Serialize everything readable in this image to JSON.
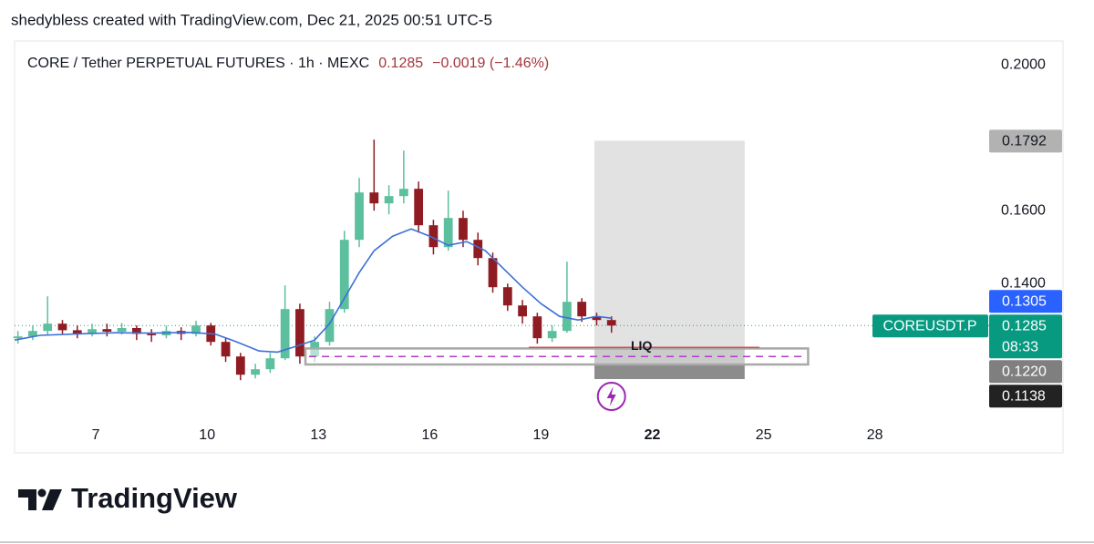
{
  "chart_data": {
    "type": "candlestick",
    "caption": "shedybless created with TradingView.com, Dec 21, 2025 00:51 UTC-5",
    "title": "CORE / Tether PERPETUAL FUTURES · 1h · MEXC",
    "last_price": 0.1285,
    "change": "−0.0019 (−1.46%)",
    "countdown": "08:33",
    "symbol_tag": "COREUSDT.P",
    "brand": "TradingView",
    "up_color": "#5cbf9d",
    "down_color": "#8e1c22",
    "x": [
      4.9,
      5.3,
      5.7,
      6.1,
      6.5,
      6.9,
      7.3,
      7.7,
      8.1,
      8.5,
      8.9,
      9.3,
      9.7,
      10.1,
      10.5,
      10.9,
      11.3,
      11.7,
      12.1,
      12.5,
      12.9,
      13.3,
      13.7,
      14.1,
      14.5,
      14.9,
      15.3,
      15.7,
      16.1,
      16.5,
      16.9,
      17.3,
      17.7,
      18.1,
      18.5,
      18.9,
      19.3,
      19.7,
      20.1,
      20.5,
      20.9
    ],
    "open": [
      0.125,
      0.1255,
      0.127,
      0.129,
      0.1272,
      0.1262,
      0.1275,
      0.1268,
      0.1278,
      0.1262,
      0.1258,
      0.127,
      0.1262,
      0.1285,
      0.124,
      0.12,
      0.115,
      0.1165,
      0.1195,
      0.133,
      0.12,
      0.124,
      0.133,
      0.152,
      0.165,
      0.162,
      0.164,
      0.166,
      0.156,
      0.15,
      0.158,
      0.152,
      0.147,
      0.139,
      0.134,
      0.131,
      0.125,
      0.127,
      0.135,
      0.131,
      0.13
    ],
    "high": [
      0.127,
      0.1285,
      0.1365,
      0.13,
      0.1285,
      0.129,
      0.129,
      0.1292,
      0.1285,
      0.1275,
      0.1285,
      0.128,
      0.1298,
      0.1292,
      0.125,
      0.121,
      0.118,
      0.121,
      0.1395,
      0.1345,
      0.1255,
      0.135,
      0.1545,
      0.169,
      0.1795,
      0.167,
      0.1765,
      0.168,
      0.1575,
      0.1655,
      0.16,
      0.154,
      0.1485,
      0.14,
      0.1355,
      0.132,
      0.1285,
      0.146,
      0.136,
      0.132,
      0.131
    ],
    "low": [
      0.1235,
      0.1245,
      0.126,
      0.1262,
      0.125,
      0.1255,
      0.1255,
      0.126,
      0.1245,
      0.124,
      0.125,
      0.1245,
      0.1255,
      0.123,
      0.1185,
      0.1135,
      0.114,
      0.1155,
      0.119,
      0.118,
      0.1185,
      0.123,
      0.132,
      0.15,
      0.16,
      0.159,
      0.162,
      0.154,
      0.148,
      0.149,
      0.15,
      0.145,
      0.1375,
      0.1325,
      0.129,
      0.1235,
      0.124,
      0.1265,
      0.1295,
      0.1285,
      0.1265
    ],
    "close": [
      0.1255,
      0.127,
      0.129,
      0.1272,
      0.1262,
      0.1275,
      0.1268,
      0.1278,
      0.1262,
      0.1258,
      0.127,
      0.1262,
      0.1285,
      0.124,
      0.12,
      0.115,
      0.1165,
      0.1195,
      0.133,
      0.12,
      0.124,
      0.133,
      0.152,
      0.165,
      0.162,
      0.164,
      0.166,
      0.156,
      0.15,
      0.158,
      0.152,
      0.147,
      0.139,
      0.134,
      0.131,
      0.125,
      0.127,
      0.135,
      0.131,
      0.13,
      0.1285
    ],
    "ma": {
      "color": "#3d6fd8",
      "x": [
        4.81,
        5.5,
        6.5,
        7.5,
        8.5,
        9.5,
        10.2,
        10.8,
        11.4,
        11.9,
        12.4,
        12.9,
        13.3,
        13.7,
        14.1,
        14.5,
        15.0,
        15.5,
        16.0,
        16.5,
        17.0,
        17.5,
        18.0,
        18.5,
        19.0,
        19.5,
        20.0,
        20.5,
        20.9
      ],
      "values": [
        0.1245,
        0.1258,
        0.1262,
        0.1265,
        0.1264,
        0.1266,
        0.1262,
        0.124,
        0.1215,
        0.1212,
        0.1228,
        0.1245,
        0.129,
        0.136,
        0.143,
        0.149,
        0.153,
        0.155,
        0.153,
        0.1505,
        0.1515,
        0.149,
        0.144,
        0.139,
        0.1345,
        0.131,
        0.13,
        0.131,
        0.1305
      ]
    },
    "position": {
      "x": [
        20.44,
        24.49
      ],
      "target": 0.1792,
      "entry": {
        "value": 0.122,
        "label": "0.1220"
      },
      "stop": 0.1138
    },
    "zone": {
      "x": [
        12.65,
        26.2
      ],
      "ylim": [
        0.1178,
        0.1222
      ],
      "dash_level": 0.12,
      "color": "#b03cc8"
    },
    "liq": {
      "label": "LIQ",
      "level": 0.1225,
      "x": [
        18.67,
        24.89
      ],
      "color": "#e04848"
    },
    "xlim": [
      4.81,
      31.08
    ],
    "xticks": [
      7,
      10,
      13,
      16,
      19,
      22,
      25,
      28
    ],
    "bold_xtick_index": 5,
    "ylim": [
      0.1028,
      0.2078
    ],
    "yticks": [
      {
        "value": 0.14,
        "label": "0.1400"
      },
      {
        "value": 0.16,
        "label": "0.1600"
      },
      {
        "value": 0.2,
        "label": "0.2000"
      }
    ],
    "grid": false
  }
}
